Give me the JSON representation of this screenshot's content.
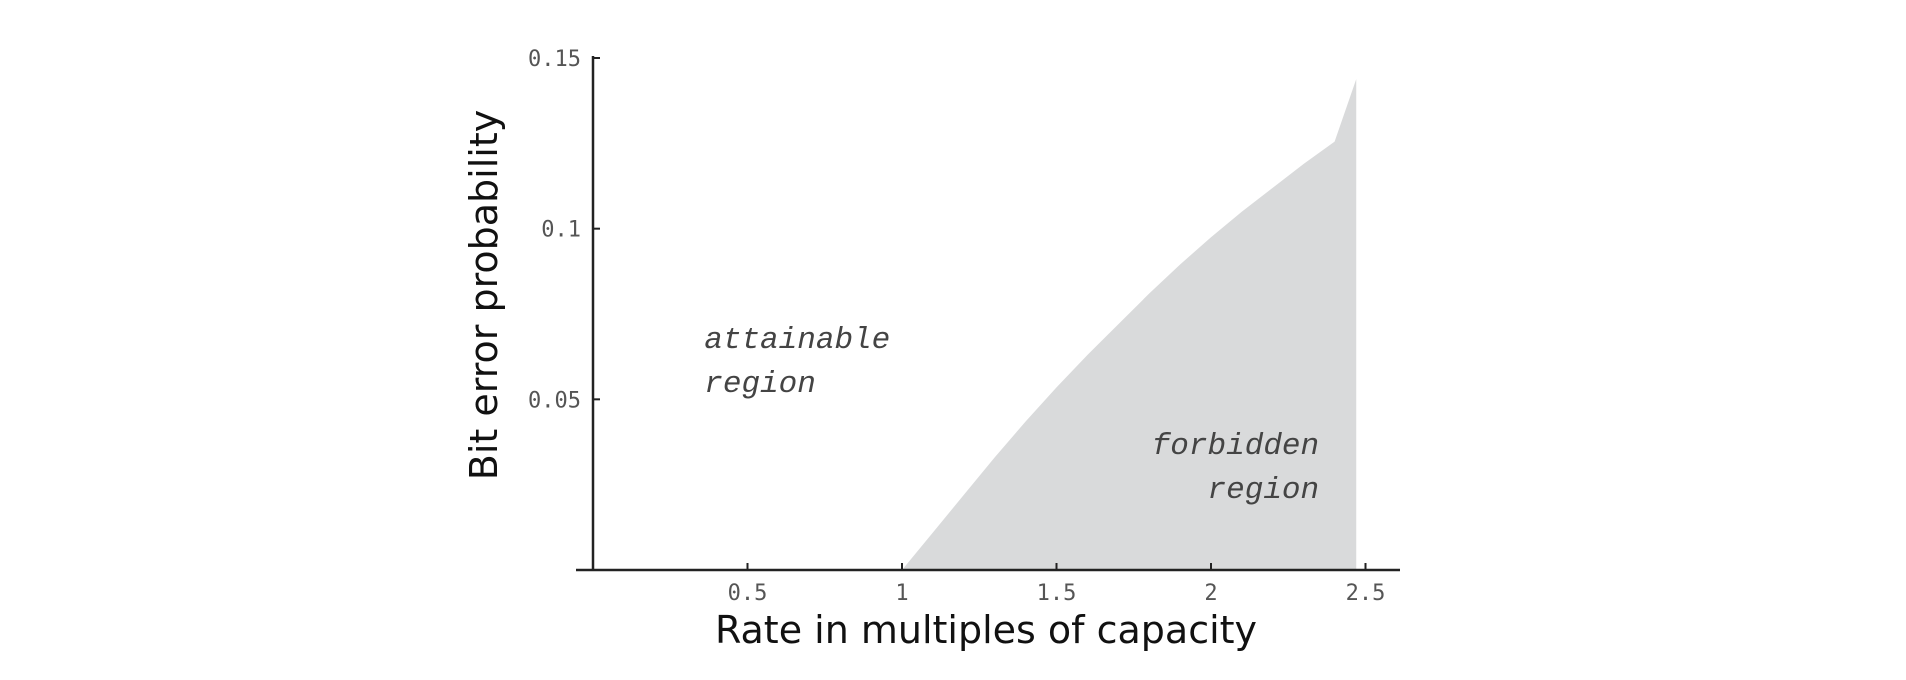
{
  "chart_data": {
    "type": "area",
    "xlabel": "Rate in multiples of capacity",
    "ylabel": "Bit error probability",
    "xlim": [
      0,
      2.5
    ],
    "ylim": [
      0,
      0.15
    ],
    "x_ticks": [
      {
        "value": 0.5,
        "label": "0.5"
      },
      {
        "value": 1,
        "label": "1"
      },
      {
        "value": 1.5,
        "label": "1.5"
      },
      {
        "value": 2,
        "label": "2"
      },
      {
        "value": 2.5,
        "label": "2.5"
      }
    ],
    "y_ticks": [
      {
        "value": 0.05,
        "label": "0.05"
      },
      {
        "value": 0.1,
        "label": "0.1"
      },
      {
        "value": 0.15,
        "label": "0.15"
      }
    ],
    "boundary": {
      "x": [
        1.0,
        1.1,
        1.2,
        1.3,
        1.4,
        1.5,
        1.6,
        1.7,
        1.8,
        1.9,
        2.0,
        2.1,
        2.2,
        2.3,
        2.4,
        2.47
      ],
      "y": [
        0.0,
        0.011,
        0.022,
        0.033,
        0.0435,
        0.0535,
        0.063,
        0.072,
        0.081,
        0.0895,
        0.0975,
        0.105,
        0.112,
        0.119,
        0.1255,
        0.1438
      ]
    },
    "shaded_color": "#d9dadb",
    "grid": false,
    "annotations": [
      {
        "lines": [
          "attainable",
          "region"
        ],
        "x": 0.36,
        "y": 0.065,
        "align": "start"
      },
      {
        "lines": [
          "forbidden",
          "region"
        ],
        "x": 2.35,
        "y": 0.034,
        "align": "end"
      }
    ]
  }
}
